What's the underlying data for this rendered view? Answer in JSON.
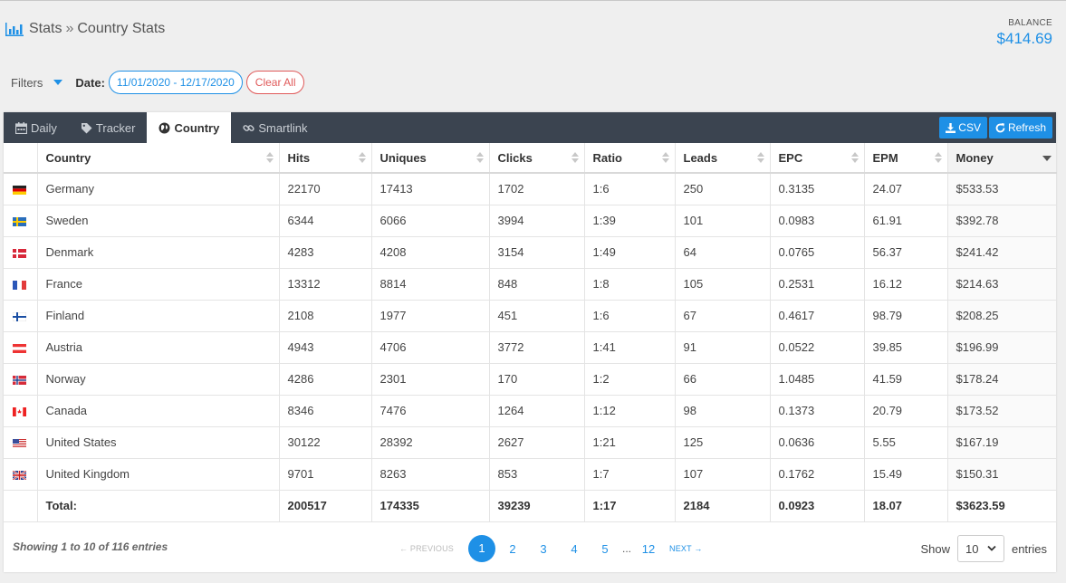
{
  "breadcrumb": {
    "root": "Stats",
    "separator": "»",
    "current": "Country Stats"
  },
  "balance": {
    "label": "BALANCE",
    "value": "$414.69"
  },
  "filters": {
    "label": "Filters",
    "date_label": "Date:",
    "date_range": "11/01/2020 - 12/17/2020",
    "clear_label": "Clear All"
  },
  "tabs": [
    {
      "label": "Daily",
      "icon": "calendar-icon",
      "active": false
    },
    {
      "label": "Tracker",
      "icon": "tag-icon",
      "active": false
    },
    {
      "label": "Country",
      "icon": "globe-icon",
      "active": true
    },
    {
      "label": "Smartlink",
      "icon": "link-icon",
      "active": false
    }
  ],
  "actions": {
    "csv_label": "CSV",
    "refresh_label": "Refresh"
  },
  "table": {
    "columns": [
      "Country",
      "Hits",
      "Uniques",
      "Clicks",
      "Ratio",
      "Leads",
      "EPC",
      "EPM",
      "Money"
    ],
    "sorted_column": "Money",
    "rows": [
      {
        "flag": "DE",
        "country": "Germany",
        "hits": "22170",
        "uniques": "17413",
        "clicks": "1702",
        "ratio": "1:6",
        "leads": "250",
        "epc": "0.3135",
        "epm": "24.07",
        "money": "$533.53"
      },
      {
        "flag": "SE",
        "country": "Sweden",
        "hits": "6344",
        "uniques": "6066",
        "clicks": "3994",
        "ratio": "1:39",
        "leads": "101",
        "epc": "0.0983",
        "epm": "61.91",
        "money": "$392.78"
      },
      {
        "flag": "DK",
        "country": "Denmark",
        "hits": "4283",
        "uniques": "4208",
        "clicks": "3154",
        "ratio": "1:49",
        "leads": "64",
        "epc": "0.0765",
        "epm": "56.37",
        "money": "$241.42"
      },
      {
        "flag": "FR",
        "country": "France",
        "hits": "13312",
        "uniques": "8814",
        "clicks": "848",
        "ratio": "1:8",
        "leads": "105",
        "epc": "0.2531",
        "epm": "16.12",
        "money": "$214.63"
      },
      {
        "flag": "FI",
        "country": "Finland",
        "hits": "2108",
        "uniques": "1977",
        "clicks": "451",
        "ratio": "1:6",
        "leads": "67",
        "epc": "0.4617",
        "epm": "98.79",
        "money": "$208.25"
      },
      {
        "flag": "AT",
        "country": "Austria",
        "hits": "4943",
        "uniques": "4706",
        "clicks": "3772",
        "ratio": "1:41",
        "leads": "91",
        "epc": "0.0522",
        "epm": "39.85",
        "money": "$196.99"
      },
      {
        "flag": "NO",
        "country": "Norway",
        "hits": "4286",
        "uniques": "2301",
        "clicks": "170",
        "ratio": "1:2",
        "leads": "66",
        "epc": "1.0485",
        "epm": "41.59",
        "money": "$178.24"
      },
      {
        "flag": "CA",
        "country": "Canada",
        "hits": "8346",
        "uniques": "7476",
        "clicks": "1264",
        "ratio": "1:12",
        "leads": "98",
        "epc": "0.1373",
        "epm": "20.79",
        "money": "$173.52"
      },
      {
        "flag": "US",
        "country": "United States",
        "hits": "30122",
        "uniques": "28392",
        "clicks": "2627",
        "ratio": "1:21",
        "leads": "125",
        "epc": "0.0636",
        "epm": "5.55",
        "money": "$167.19"
      },
      {
        "flag": "GB",
        "country": "United Kingdom",
        "hits": "9701",
        "uniques": "8263",
        "clicks": "853",
        "ratio": "1:7",
        "leads": "107",
        "epc": "0.1762",
        "epm": "15.49",
        "money": "$150.31"
      }
    ],
    "total": {
      "label": "Total:",
      "hits": "200517",
      "uniques": "174335",
      "clicks": "39239",
      "ratio": "1:17",
      "leads": "2184",
      "epc": "0.0923",
      "epm": "18.07",
      "money": "$3623.59"
    }
  },
  "footer": {
    "info": "Showing 1 to 10 of 116 entries",
    "previous": "← PREVIOUS",
    "next": "NEXT →",
    "pages": [
      "1",
      "2",
      "3",
      "4",
      "5"
    ],
    "ellipsis": "...",
    "last_page": "12",
    "current_page": "1",
    "show_label": "Show",
    "page_size": "10",
    "entries_label": "entries"
  },
  "colors": {
    "accent": "#1e90e6",
    "tabbar": "#3b4450",
    "danger": "#e05a5a"
  }
}
